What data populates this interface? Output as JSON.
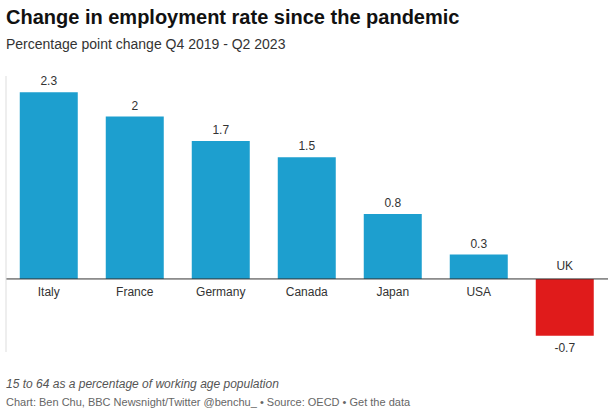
{
  "chart_data": {
    "type": "bar",
    "title": "Change in employment rate since the pandemic",
    "subtitle": "Percentage point change Q4 2019 - Q2 2023",
    "categories": [
      "Italy",
      "France",
      "Germany",
      "Canada",
      "Japan",
      "USA",
      "UK"
    ],
    "values": [
      2.3,
      2,
      1.7,
      1.5,
      0.8,
      0.3,
      -0.7
    ],
    "colors": [
      "#1d9fcf",
      "#1d9fcf",
      "#1d9fcf",
      "#1d9fcf",
      "#1d9fcf",
      "#1d9fcf",
      "#e01b1b"
    ],
    "ylim": [
      -0.9,
      2.5
    ],
    "tick_labels": false,
    "grid": false,
    "data_labels": true,
    "note": "15 to 64 as a percentage of working age population",
    "source": "Chart: Ben Chu, BBC Newsnight/Twitter @benchu_ • Source: OECD • Get the data"
  }
}
